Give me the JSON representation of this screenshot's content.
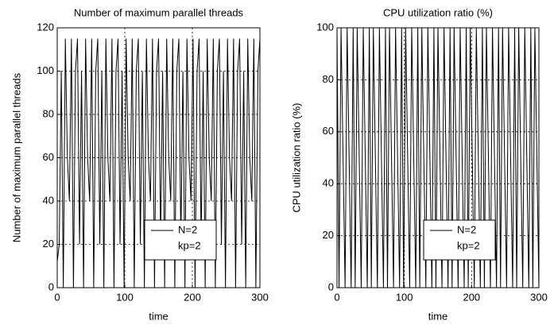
{
  "chart_data": [
    {
      "type": "line",
      "title": "Number of maximum parallel threads",
      "xlabel": "time",
      "ylabel": "Number of maximum parallel threads",
      "x": [
        0,
        3,
        6,
        9,
        12,
        15,
        18,
        21,
        24,
        27,
        30,
        33,
        36,
        39,
        42,
        45,
        48,
        51,
        54,
        57,
        60,
        63,
        66,
        69,
        72,
        75,
        78,
        81,
        84,
        87,
        90,
        93,
        96,
        99,
        102,
        105,
        108,
        111,
        114,
        117,
        120,
        123,
        126,
        129,
        132,
        135,
        138,
        141,
        144,
        147,
        150,
        153,
        156,
        159,
        162,
        165,
        168,
        171,
        174,
        177,
        180,
        183,
        186,
        189,
        192,
        195,
        198,
        201,
        204,
        207,
        210,
        213,
        216,
        219,
        222,
        225,
        228,
        231,
        234,
        237,
        240,
        243,
        246,
        249,
        252,
        255,
        258,
        261,
        264,
        267,
        270,
        273,
        276,
        279,
        282,
        285,
        288,
        291,
        294,
        297,
        300
      ],
      "series": [
        {
          "name": "N=2",
          "color": "#000000",
          "values": [
            12,
            20,
            100,
            0,
            115,
            60,
            40,
            115,
            0,
            100,
            115,
            20,
            100,
            0,
            115,
            60,
            40,
            115,
            0,
            100,
            115,
            20,
            100,
            0,
            115,
            60,
            40,
            115,
            0,
            100,
            115,
            20,
            100,
            0,
            115,
            60,
            40,
            115,
            0,
            100,
            115,
            20,
            100,
            0,
            115,
            60,
            40,
            115,
            0,
            100,
            115,
            20,
            100,
            0,
            115,
            60,
            40,
            115,
            0,
            100,
            115,
            20,
            100,
            0,
            115,
            60,
            40,
            115,
            0,
            100,
            115,
            20,
            100,
            0,
            115,
            60,
            40,
            115,
            0,
            100,
            115,
            20,
            100,
            0,
            115,
            60,
            40,
            115,
            0,
            100,
            115,
            20,
            100,
            0,
            115,
            60,
            40,
            115,
            0,
            100,
            115
          ]
        }
      ],
      "legend_note": "kp=2",
      "legend": "lower right",
      "xlim": [
        0,
        300
      ],
      "xticks": [
        0,
        100,
        200,
        300
      ],
      "ylim": [
        0,
        120
      ],
      "yticks": [
        0,
        20,
        40,
        60,
        80,
        100,
        120
      ],
      "grid": true
    },
    {
      "type": "line",
      "title": "CPU utilization ratio (%)",
      "xlabel": "time",
      "ylabel": "CPU utilization ratio (%)",
      "x": [
        0,
        3,
        6,
        9,
        12,
        15,
        18,
        21,
        24,
        27,
        30,
        33,
        36,
        39,
        42,
        45,
        48,
        51,
        54,
        57,
        60,
        63,
        66,
        69,
        72,
        75,
        78,
        81,
        84,
        87,
        90,
        93,
        96,
        99,
        102,
        105,
        108,
        111,
        114,
        117,
        120,
        123,
        126,
        129,
        132,
        135,
        138,
        141,
        144,
        147,
        150,
        153,
        156,
        159,
        162,
        165,
        168,
        171,
        174,
        177,
        180,
        183,
        186,
        189,
        192,
        195,
        198,
        201,
        204,
        207,
        210,
        213,
        216,
        219,
        222,
        225,
        228,
        231,
        234,
        237,
        240,
        243,
        246,
        249,
        252,
        255,
        258,
        261,
        264,
        267,
        270,
        273,
        276,
        279,
        282,
        285,
        288,
        291,
        294,
        297,
        300
      ],
      "series": [
        {
          "name": "N=2",
          "color": "#000000",
          "values": [
            100,
            0,
            100,
            50,
            0,
            100,
            50,
            0,
            100,
            0,
            100,
            50,
            0,
            100,
            50,
            0,
            100,
            0,
            100,
            50,
            0,
            100,
            50,
            0,
            100,
            0,
            100,
            50,
            0,
            100,
            50,
            0,
            100,
            0,
            100,
            50,
            0,
            100,
            50,
            0,
            100,
            0,
            100,
            50,
            0,
            100,
            50,
            0,
            100,
            0,
            100,
            50,
            0,
            100,
            50,
            0,
            100,
            0,
            100,
            50,
            0,
            100,
            50,
            0,
            100,
            0,
            100,
            50,
            0,
            100,
            50,
            0,
            100,
            0,
            100,
            50,
            0,
            100,
            50,
            0,
            100,
            0,
            100,
            50,
            0,
            100,
            50,
            0,
            100,
            0,
            100,
            50,
            0,
            100,
            50,
            0,
            100,
            0,
            100,
            50,
            0
          ]
        }
      ],
      "legend_note": "kp=2",
      "legend": "lower right",
      "xlim": [
        0,
        300
      ],
      "xticks": [
        0,
        100,
        200,
        300
      ],
      "ylim": [
        0,
        100
      ],
      "yticks": [
        0,
        20,
        40,
        60,
        80,
        100
      ],
      "grid": true
    }
  ]
}
